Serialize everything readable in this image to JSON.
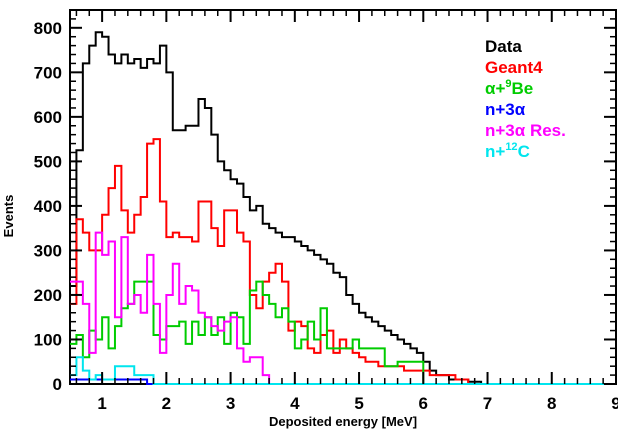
{
  "chart_data": {
    "type": "line",
    "title": "",
    "xlabel": "Deposited energy [MeV]",
    "ylabel": "Events",
    "xlim": [
      0.5,
      9.0
    ],
    "ylim": [
      0,
      840
    ],
    "x_ticks": [
      "1",
      "2",
      "3",
      "4",
      "5",
      "6",
      "7",
      "8",
      "9"
    ],
    "y_ticks": [
      "0",
      "100",
      "200",
      "300",
      "400",
      "500",
      "600",
      "700",
      "800"
    ],
    "grid": false,
    "legend_position": "top-right",
    "bin_width": 0.1,
    "x_start": 0.5,
    "series": [
      {
        "name": "Data",
        "color": "#000000",
        "values": [
          220,
          525,
          720,
          760,
          790,
          780,
          740,
          720,
          740,
          720,
          730,
          710,
          730,
          720,
          760,
          700,
          570,
          570,
          580,
          580,
          640,
          620,
          560,
          500,
          480,
          460,
          450,
          420,
          390,
          400,
          360,
          350,
          340,
          330,
          330,
          320,
          310,
          300,
          290,
          280,
          270,
          250,
          240,
          200,
          180,
          160,
          150,
          140,
          130,
          120,
          110,
          100,
          90,
          80,
          70,
          50,
          30,
          20,
          20,
          10,
          10,
          10,
          5,
          5,
          0,
          0,
          0,
          0,
          0,
          0,
          0,
          0,
          0,
          0,
          0,
          0,
          0,
          0,
          0,
          0,
          0,
          0,
          0,
          0,
          0
        ]
      },
      {
        "name": "Geant4",
        "color": "#ff0000",
        "values": [
          180,
          370,
          340,
          300,
          300,
          380,
          440,
          490,
          390,
          340,
          380,
          420,
          540,
          550,
          410,
          330,
          340,
          330,
          330,
          320,
          410,
          410,
          350,
          310,
          390,
          390,
          340,
          320,
          200,
          170,
          230,
          250,
          270,
          230,
          120,
          140,
          130,
          80,
          70,
          110,
          120,
          70,
          100,
          80,
          70,
          60,
          50,
          50,
          40,
          40,
          40,
          40,
          30,
          30,
          30,
          30,
          20,
          20,
          20,
          20,
          10,
          10,
          0,
          0,
          0,
          0,
          0,
          0,
          0,
          0,
          0,
          0,
          0,
          0,
          0,
          0,
          0,
          0,
          0,
          0,
          0,
          0,
          0,
          0,
          0
        ]
      },
      {
        "name": "α+9Be",
        "color": "#00cc00",
        "values": [
          90,
          110,
          60,
          120,
          100,
          150,
          80,
          130,
          170,
          180,
          230,
          230,
          230,
          110,
          100,
          130,
          130,
          140,
          90,
          140,
          110,
          150,
          110,
          150,
          90,
          160,
          150,
          90,
          210,
          230,
          200,
          180,
          150,
          170,
          140,
          80,
          100,
          140,
          100,
          170,
          80,
          80,
          80,
          80,
          100,
          80,
          80,
          80,
          80,
          40,
          40,
          50,
          50,
          50,
          50,
          0,
          0,
          0,
          0,
          0,
          0,
          0,
          0,
          0,
          0,
          0,
          0,
          0,
          0,
          0,
          0,
          0,
          0,
          0,
          0,
          0,
          0,
          0,
          0,
          0,
          0,
          0,
          0,
          0,
          0
        ]
      },
      {
        "name": "n+3α",
        "color": "#0000ff",
        "values": [
          10,
          10,
          10,
          10,
          10,
          10,
          10,
          10,
          10,
          10,
          10,
          10,
          0,
          0,
          0,
          0,
          0,
          0,
          0,
          0,
          0,
          0,
          0,
          0,
          0,
          0,
          0,
          0,
          0,
          0,
          0,
          0,
          0,
          0,
          0,
          0,
          0,
          0,
          0,
          0,
          0,
          0,
          0,
          0,
          0,
          0,
          0,
          0,
          0,
          0,
          0,
          0,
          0,
          0,
          0,
          0,
          0,
          0,
          0,
          0,
          0,
          0,
          0,
          0,
          0,
          0,
          0,
          0,
          0,
          0,
          0,
          0,
          0,
          0,
          0,
          0,
          0,
          0,
          0,
          0,
          0,
          0,
          0,
          0,
          0
        ]
      },
      {
        "name": "n+3α Res.",
        "color": "#ff00ff",
        "values": [
          230,
          230,
          180,
          70,
          340,
          290,
          320,
          150,
          330,
          180,
          200,
          160,
          290,
          180,
          70,
          200,
          270,
          180,
          220,
          210,
          160,
          150,
          130,
          120,
          140,
          150,
          80,
          50,
          60,
          60,
          20,
          0,
          0,
          0,
          0,
          0,
          0,
          0,
          0,
          0,
          0,
          0,
          0,
          0,
          0,
          0,
          0,
          0,
          0,
          0,
          0,
          0,
          0,
          0,
          0,
          0,
          0,
          0,
          0,
          0,
          0,
          0,
          0,
          0,
          0,
          0,
          0,
          0,
          0,
          0,
          0,
          0,
          0,
          0,
          0,
          0,
          0,
          0,
          0,
          0,
          0,
          0,
          0,
          0,
          0
        ]
      },
      {
        "name": "n+12C",
        "color": "#00e5ee",
        "values": [
          20,
          60,
          30,
          10,
          20,
          10,
          10,
          40,
          40,
          40,
          20,
          20,
          20,
          0,
          0,
          0,
          0,
          0,
          0,
          0,
          0,
          0,
          0,
          0,
          0,
          0,
          0,
          0,
          0,
          0,
          0,
          0,
          0,
          0,
          0,
          0,
          0,
          0,
          0,
          0,
          0,
          0,
          0,
          0,
          0,
          0,
          0,
          0,
          0,
          0,
          0,
          0,
          0,
          0,
          0,
          0,
          0,
          0,
          0,
          0,
          0,
          0,
          0,
          0,
          0,
          0,
          0,
          0,
          0,
          0,
          0,
          0,
          0,
          0,
          0,
          0,
          0,
          0,
          0,
          0,
          0,
          0,
          0,
          0,
          0
        ]
      }
    ],
    "legend": [
      {
        "label": "Data",
        "color": "#000000"
      },
      {
        "label": "Geant4",
        "color": "#ff0000"
      },
      {
        "label": "α+",
        "sup": "9",
        "suffix": "Be",
        "color": "#00cc00"
      },
      {
        "label": "n+3α",
        "color": "#0000ff"
      },
      {
        "label": "n+3α Res.",
        "color": "#ff00ff"
      },
      {
        "label": "n+",
        "sup": "12",
        "suffix": "C",
        "color": "#00e5ee"
      }
    ]
  }
}
